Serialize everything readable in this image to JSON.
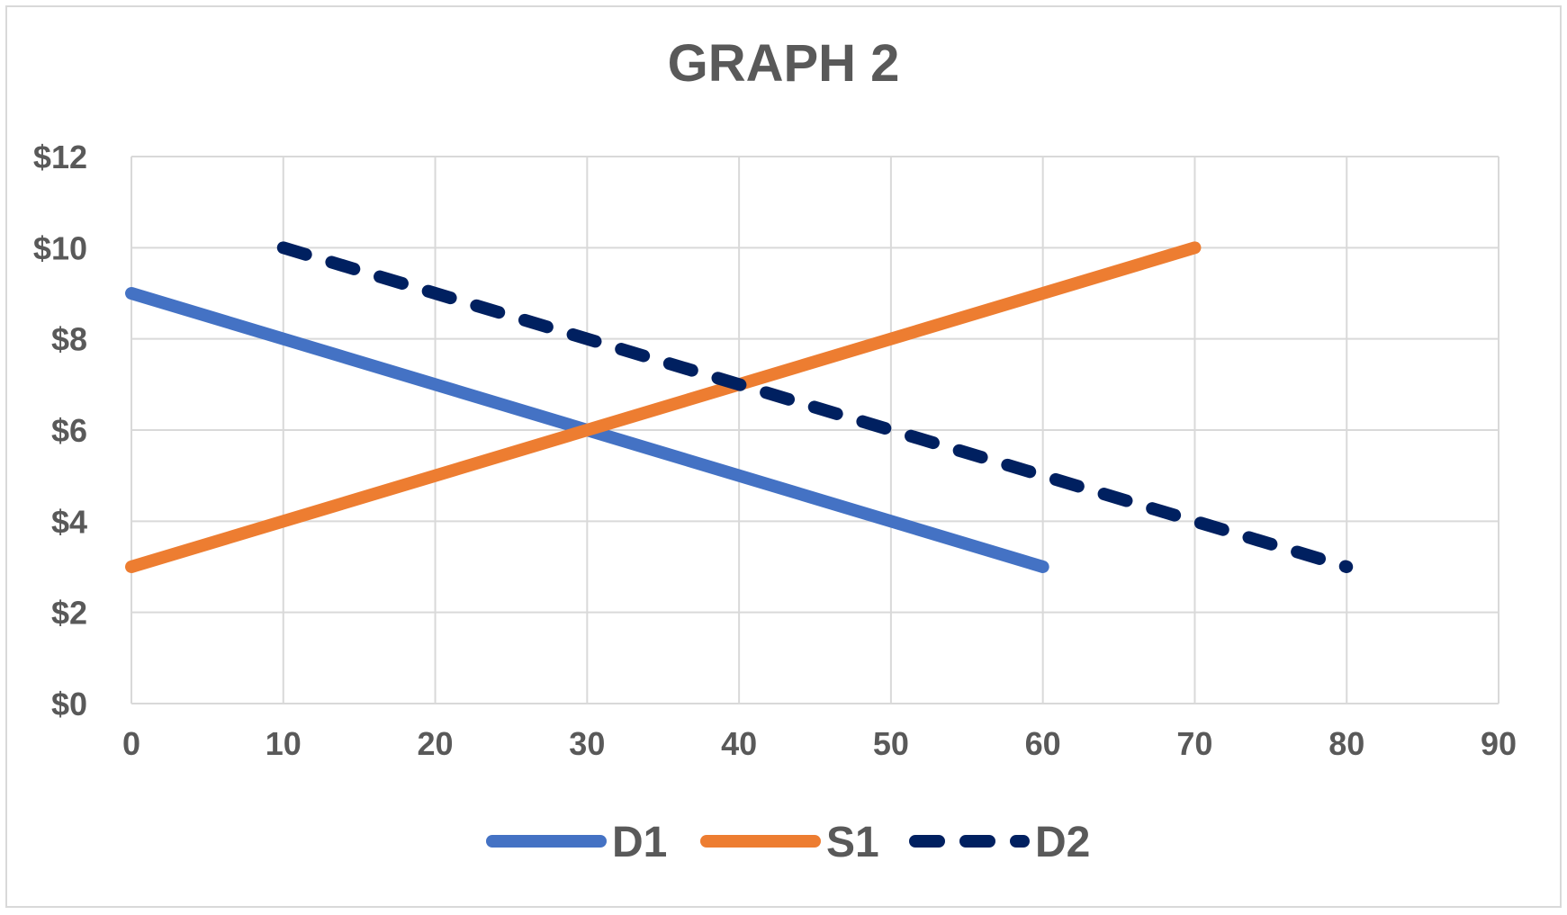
{
  "chart_data": {
    "type": "line",
    "title": "GRAPH 2",
    "xlabel": "",
    "ylabel": "",
    "xlim": [
      0,
      90
    ],
    "ylim": [
      0,
      12
    ],
    "x_ticks": [
      "0",
      "10",
      "20",
      "30",
      "40",
      "50",
      "60",
      "70",
      "80",
      "90"
    ],
    "x_tick_values": [
      0,
      10,
      20,
      30,
      40,
      50,
      60,
      70,
      80,
      90
    ],
    "y_ticks": [
      "$0",
      "$2",
      "$4",
      "$6",
      "$8",
      "$10",
      "$12"
    ],
    "y_tick_values": [
      0,
      2,
      4,
      6,
      8,
      10,
      12
    ],
    "grid": true,
    "legend_position": "bottom",
    "series": [
      {
        "name": "D1",
        "color": "#4472c4",
        "style": "solid",
        "x": [
          0,
          60
        ],
        "y": [
          9,
          3
        ]
      },
      {
        "name": "S1",
        "color": "#ed7d31",
        "style": "solid",
        "x": [
          0,
          70
        ],
        "y": [
          3,
          10
        ]
      },
      {
        "name": "D2",
        "color": "#002060",
        "style": "dashed",
        "x": [
          10,
          80
        ],
        "y": [
          10,
          3
        ]
      }
    ]
  }
}
